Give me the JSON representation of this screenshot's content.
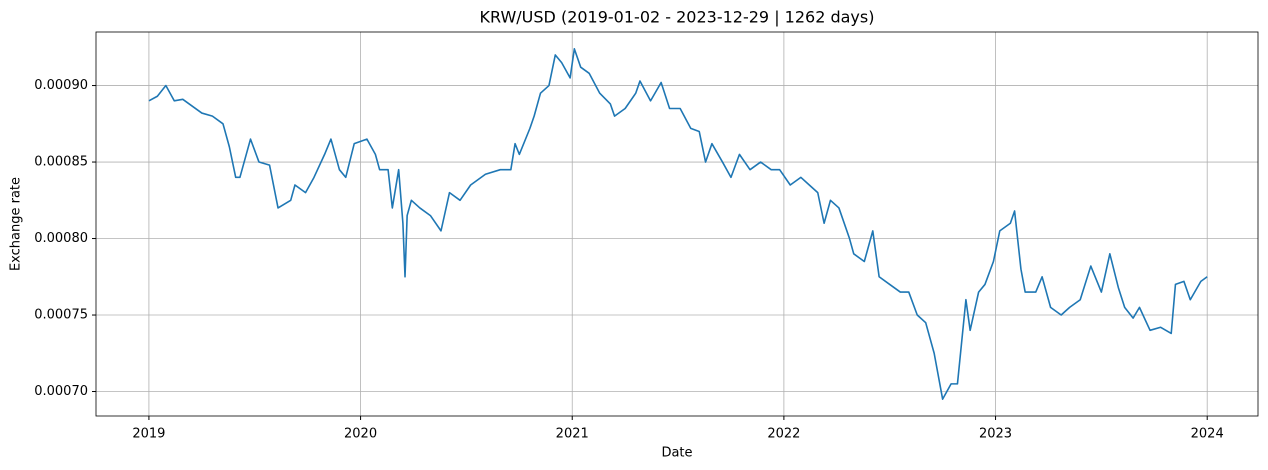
{
  "chart_data": {
    "type": "line",
    "title": "KRW/USD     (2019-01-02 - 2023-12-29 | 1262 days)",
    "xlabel": "Date",
    "ylabel": "Exchange rate",
    "grid": true,
    "xlim": [
      2018.75,
      2024.24
    ],
    "xticks": [
      2019,
      2020,
      2021,
      2022,
      2023,
      2024
    ],
    "ylim": [
      0.000684,
      0.000935
    ],
    "yticks": [
      {
        "value": 0.0007,
        "label": "0.00070"
      },
      {
        "value": 0.00075,
        "label": "0.00075"
      },
      {
        "value": 0.0008,
        "label": "0.00080"
      },
      {
        "value": 0.00085,
        "label": "0.00085"
      },
      {
        "value": 0.0009,
        "label": "0.00090"
      }
    ],
    "x": [
      2019.0,
      2019.04,
      2019.08,
      2019.12,
      2019.16,
      2019.2,
      2019.25,
      2019.3,
      2019.35,
      2019.38,
      2019.41,
      2019.43,
      2019.48,
      2019.52,
      2019.57,
      2019.61,
      2019.67,
      2019.69,
      2019.74,
      2019.78,
      2019.83,
      2019.86,
      2019.9,
      2019.93,
      2019.97,
      2020.03,
      2020.07,
      2020.09,
      2020.13,
      2020.15,
      2020.18,
      2020.2,
      2020.21,
      2020.22,
      2020.24,
      2020.28,
      2020.33,
      2020.38,
      2020.42,
      2020.47,
      2020.52,
      2020.59,
      2020.66,
      2020.71,
      2020.73,
      2020.75,
      2020.8,
      2020.82,
      2020.85,
      2020.89,
      2020.92,
      2020.95,
      2020.99,
      2021.01,
      2021.04,
      2021.08,
      2021.13,
      2021.18,
      2021.2,
      2021.25,
      2021.3,
      2021.32,
      2021.37,
      2021.42,
      2021.46,
      2021.51,
      2021.56,
      2021.6,
      2021.63,
      2021.66,
      2021.71,
      2021.75,
      2021.79,
      2021.84,
      2021.89,
      2021.94,
      2021.98,
      2022.03,
      2022.08,
      2022.12,
      2022.16,
      2022.19,
      2022.22,
      2022.26,
      2022.31,
      2022.33,
      2022.38,
      2022.42,
      2022.45,
      2022.5,
      2022.55,
      2022.59,
      2022.63,
      2022.67,
      2022.71,
      2022.75,
      2022.79,
      2022.82,
      2022.86,
      2022.88,
      2022.92,
      2022.95,
      2022.99,
      2023.02,
      2023.07,
      2023.09,
      2023.12,
      2023.14,
      2023.19,
      2023.22,
      2023.26,
      2023.31,
      2023.35,
      2023.4,
      2023.45,
      2023.5,
      2023.54,
      2023.58,
      2023.61,
      2023.65,
      2023.68,
      2023.73,
      2023.78,
      2023.83,
      2023.85,
      2023.89,
      2023.92,
      2023.97,
      2024.0
    ],
    "series": [
      {
        "name": "KRW/USD",
        "color": "#1f77b4",
        "values": [
          0.00089,
          0.000893,
          0.0009,
          0.00089,
          0.000891,
          0.000887,
          0.000882,
          0.00088,
          0.000875,
          0.00086,
          0.00084,
          0.00084,
          0.000865,
          0.00085,
          0.000848,
          0.00082,
          0.000825,
          0.000835,
          0.00083,
          0.00084,
          0.000855,
          0.000865,
          0.000845,
          0.00084,
          0.000862,
          0.000865,
          0.000855,
          0.000845,
          0.000845,
          0.00082,
          0.000845,
          0.00081,
          0.000775,
          0.000815,
          0.000825,
          0.00082,
          0.000815,
          0.000805,
          0.00083,
          0.000825,
          0.000835,
          0.000842,
          0.000845,
          0.000845,
          0.000862,
          0.000855,
          0.000872,
          0.00088,
          0.000895,
          0.0009,
          0.00092,
          0.000915,
          0.000905,
          0.000924,
          0.000912,
          0.000908,
          0.000895,
          0.000888,
          0.00088,
          0.000885,
          0.000895,
          0.000903,
          0.00089,
          0.000902,
          0.000885,
          0.000885,
          0.000872,
          0.00087,
          0.00085,
          0.000862,
          0.00085,
          0.00084,
          0.000855,
          0.000845,
          0.00085,
          0.000845,
          0.000845,
          0.000835,
          0.00084,
          0.000835,
          0.00083,
          0.00081,
          0.000825,
          0.00082,
          0.0008,
          0.00079,
          0.000785,
          0.000805,
          0.000775,
          0.00077,
          0.000765,
          0.000765,
          0.00075,
          0.000745,
          0.000725,
          0.000695,
          0.000705,
          0.000705,
          0.00076,
          0.00074,
          0.000765,
          0.00077,
          0.000785,
          0.000805,
          0.00081,
          0.000818,
          0.00078,
          0.000765,
          0.000765,
          0.000775,
          0.000755,
          0.00075,
          0.000755,
          0.00076,
          0.000782,
          0.000765,
          0.00079,
          0.000768,
          0.000755,
          0.000748,
          0.000755,
          0.00074,
          0.000742,
          0.000738,
          0.00077,
          0.000772,
          0.00076,
          0.000772,
          0.000775
        ]
      }
    ]
  }
}
